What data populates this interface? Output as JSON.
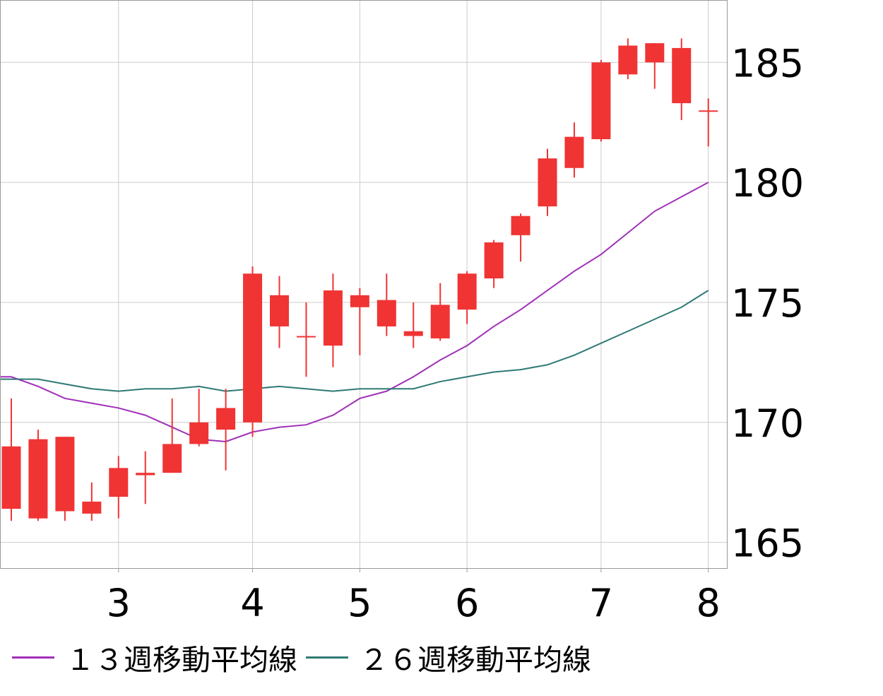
{
  "chart_data": {
    "type": "candlestick",
    "x_tick_labels": [
      "3",
      "4",
      "5",
      "6",
      "7",
      "8"
    ],
    "y_tick_labels": [
      "165",
      "170",
      "175",
      "180",
      "185"
    ],
    "ylim": [
      163.9,
      187.6
    ],
    "grid": true,
    "colors": {
      "up": "#f03434",
      "down": "#4f8ec3",
      "ma13": "#a030b8",
      "ma26": "#2f7a74",
      "grid": "#cccccc"
    },
    "candles": [
      {
        "open": 166.4,
        "close": 169.0,
        "high": 171.0,
        "low": 165.9
      },
      {
        "open": 166.0,
        "close": 169.3,
        "high": 169.7,
        "low": 165.9
      },
      {
        "open": 166.3,
        "close": 169.4,
        "high": 169.4,
        "low": 165.9
      },
      {
        "open": 166.2,
        "close": 166.7,
        "high": 167.5,
        "low": 165.9
      },
      {
        "open": 166.9,
        "close": 168.1,
        "high": 168.6,
        "low": 166.0
      },
      {
        "open": 167.8,
        "close": 167.9,
        "high": 168.8,
        "low": 166.6
      },
      {
        "open": 167.9,
        "close": 169.1,
        "high": 171.0,
        "low": 167.9
      },
      {
        "open": 169.1,
        "close": 170.0,
        "high": 171.4,
        "low": 169.0
      },
      {
        "open": 169.7,
        "close": 170.6,
        "high": 171.4,
        "low": 168.0
      },
      {
        "open": 170.0,
        "close": 176.2,
        "high": 176.5,
        "low": 169.4
      },
      {
        "open": 174.0,
        "close": 175.3,
        "high": 176.1,
        "low": 173.1
      },
      {
        "open": 173.6,
        "close": 173.6,
        "high": 175.0,
        "low": 171.9
      },
      {
        "open": 173.2,
        "close": 175.5,
        "high": 176.2,
        "low": 172.3
      },
      {
        "open": 174.8,
        "close": 175.3,
        "high": 175.6,
        "low": 172.8
      },
      {
        "open": 174.0,
        "close": 175.1,
        "high": 176.2,
        "low": 173.6
      },
      {
        "open": 173.6,
        "close": 173.8,
        "high": 175.0,
        "low": 173.1
      },
      {
        "open": 173.5,
        "close": 174.9,
        "high": 175.8,
        "low": 173.4
      },
      {
        "open": 174.7,
        "close": 176.2,
        "high": 176.3,
        "low": 174.1
      },
      {
        "open": 176.0,
        "close": 177.5,
        "high": 177.6,
        "low": 175.6
      },
      {
        "open": 177.8,
        "close": 178.6,
        "high": 178.7,
        "low": 176.7
      },
      {
        "open": 179.0,
        "close": 181.0,
        "high": 181.4,
        "low": 178.6
      },
      {
        "open": 180.6,
        "close": 181.9,
        "high": 182.5,
        "low": 180.2
      },
      {
        "open": 181.8,
        "close": 185.0,
        "high": 185.1,
        "low": 181.7
      },
      {
        "open": 184.5,
        "close": 185.7,
        "high": 186.0,
        "low": 184.3
      },
      {
        "open": 185.0,
        "close": 185.8,
        "high": 185.8,
        "low": 183.9
      },
      {
        "open": 183.3,
        "close": 185.6,
        "high": 186.0,
        "low": 182.6
      },
      {
        "open": 183.0,
        "close": 183.0,
        "high": 183.5,
        "low": 181.5
      }
    ],
    "series": [
      {
        "name": "１３週移動平均線",
        "values": [
          171.9,
          171.5,
          171.0,
          170.8,
          170.6,
          170.3,
          169.8,
          169.3,
          169.2,
          169.6,
          169.8,
          169.9,
          170.3,
          171.0,
          171.3,
          171.9,
          172.6,
          173.2,
          174.0,
          174.7,
          175.5,
          176.3,
          177.0,
          177.9,
          178.8,
          179.4,
          180.0
        ]
      },
      {
        "name": "２６週移動平均線",
        "values": [
          171.8,
          171.8,
          171.6,
          171.4,
          171.3,
          171.4,
          171.4,
          171.5,
          171.3,
          171.4,
          171.5,
          171.4,
          171.3,
          171.4,
          171.4,
          171.4,
          171.7,
          171.9,
          172.1,
          172.2,
          172.4,
          172.8,
          173.3,
          173.8,
          174.3,
          174.8,
          175.5
        ]
      }
    ]
  }
}
